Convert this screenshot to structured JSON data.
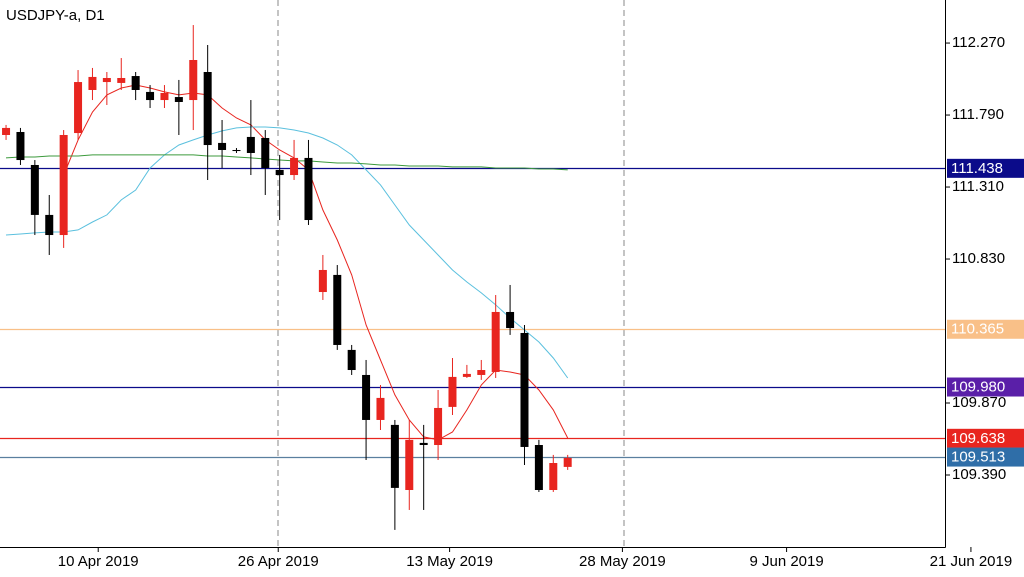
{
  "chart_data": {
    "type": "candlestick",
    "title": "USDJPY-a, D1",
    "up_color": "#e8251f",
    "down_color": "#000000",
    "open": [
      111.657,
      111.677,
      111.457,
      111.124,
      110.99,
      111.67,
      111.957,
      112.01,
      112.004,
      112.05,
      111.944,
      111.89,
      111.91,
      111.89,
      112.077,
      111.604,
      111.557,
      111.644,
      111.637,
      111.424,
      111.39,
      111.504,
      110.61,
      110.724,
      110.224,
      110.057,
      109.757,
      109.724,
      109.29,
      109.604,
      109.59,
      109.844,
      110.044,
      110.057,
      110.077,
      110.477,
      110.337,
      109.59,
      109.29,
      109.444
    ],
    "high": [
      111.724,
      111.704,
      111.49,
      111.257,
      111.69,
      112.09,
      112.104,
      112.077,
      112.17,
      112.077,
      111.99,
      111.99,
      112.024,
      112.39,
      112.257,
      111.757,
      111.57,
      111.89,
      111.69,
      111.524,
      111.624,
      111.624,
      110.857,
      110.79,
      110.257,
      110.157,
      109.99,
      109.757,
      109.757,
      109.724,
      109.957,
      110.17,
      110.124,
      110.157,
      110.59,
      110.657,
      110.39,
      109.624,
      109.524,
      109.524
    ],
    "low": [
      111.624,
      111.457,
      110.99,
      110.857,
      110.904,
      111.624,
      111.89,
      111.857,
      111.957,
      111.89,
      111.837,
      111.837,
      111.657,
      111.69,
      111.357,
      111.437,
      111.537,
      111.39,
      111.257,
      111.09,
      111.357,
      111.057,
      110.557,
      110.224,
      110.057,
      109.49,
      109.69,
      109.024,
      109.157,
      109.157,
      109.49,
      109.79,
      110.037,
      110.024,
      110.037,
      110.324,
      109.457,
      109.277,
      109.277,
      109.424
    ],
    "close": [
      111.704,
      111.49,
      111.124,
      110.99,
      111.657,
      112.01,
      112.044,
      112.037,
      112.037,
      111.957,
      111.89,
      111.937,
      111.877,
      112.157,
      111.59,
      111.557,
      111.55,
      111.537,
      111.437,
      111.39,
      111.504,
      111.09,
      110.757,
      110.257,
      110.09,
      109.757,
      109.904,
      109.304,
      109.624,
      109.59,
      109.837,
      110.044,
      110.064,
      110.09,
      110.477,
      110.37,
      109.577,
      109.29,
      109.47,
      109.504
    ],
    "series": [
      {
        "color": "#e8251f",
        "values": [
          null,
          null,
          null,
          null,
          111.39,
          111.624,
          111.81,
          111.924,
          111.97,
          111.99,
          111.97,
          111.944,
          111.924,
          111.937,
          111.924,
          111.837,
          111.77,
          111.724,
          111.624,
          111.557,
          111.504,
          111.424,
          111.157,
          110.957,
          110.724,
          110.39,
          110.157,
          109.924,
          109.757,
          109.644,
          109.624,
          109.677,
          109.824,
          109.99,
          110.09,
          110.077,
          110.057,
          109.957,
          109.824,
          109.637
        ]
      },
      {
        "color": "#5bc0de",
        "values": [
          110.99,
          110.997,
          111.004,
          111.01,
          111.01,
          111.024,
          111.077,
          111.124,
          111.224,
          111.29,
          111.437,
          111.524,
          111.59,
          111.624,
          111.657,
          111.684,
          111.704,
          111.71,
          111.71,
          111.704,
          111.69,
          111.67,
          111.637,
          111.59,
          111.524,
          111.424,
          111.324,
          111.19,
          111.057,
          110.957,
          110.857,
          110.757,
          110.677,
          110.604,
          110.524,
          110.437,
          110.357,
          110.277,
          110.17,
          110.037
        ]
      },
      {
        "color": "#3c9a3c",
        "values": [
          111.504,
          111.51,
          111.51,
          111.517,
          111.517,
          111.517,
          111.524,
          111.524,
          111.524,
          111.524,
          111.524,
          111.524,
          111.524,
          111.524,
          111.517,
          111.517,
          111.51,
          111.504,
          111.497,
          111.49,
          111.484,
          111.484,
          111.477,
          111.47,
          111.47,
          111.464,
          111.457,
          111.457,
          111.45,
          111.45,
          111.45,
          111.444,
          111.444,
          111.444,
          111.437,
          111.437,
          111.437,
          111.43,
          111.43,
          111.424
        ]
      }
    ],
    "levels": [
      {
        "value": 111.438,
        "label": "111.438",
        "color": "#0b0b8a",
        "label_color": "#0b0b8a"
      },
      {
        "value": 110.365,
        "label": "110.365",
        "color": "#f9c088",
        "label_color": "#f9c088"
      },
      {
        "value": 109.98,
        "label": "109.980",
        "color": "#0b0b8a",
        "label_color": "#5a1fa8"
      },
      {
        "value": 109.638,
        "label": "109.638",
        "color": "#e8251f",
        "label_color": "#e8251f"
      },
      {
        "value": 109.513,
        "label": "109.513",
        "color": "#5a7f9f",
        "label_color": "#2f6ea8"
      }
    ],
    "ylim": [
      108.91,
      112.557
    ],
    "yticks": [
      {
        "value": 112.27,
        "label": "112.270"
      },
      {
        "value": 111.79,
        "label": "111.790"
      },
      {
        "value": 111.31,
        "label": "111.310"
      },
      {
        "value": 110.83,
        "label": "110.830"
      },
      {
        "value": 109.87,
        "label": "109.870"
      },
      {
        "value": 109.39,
        "label": "109.390"
      }
    ],
    "xlim": [
      -0.42,
      65.2
    ],
    "xticks": [
      {
        "value": 6.4,
        "label": "10 Apr 2019"
      },
      {
        "value": 18.9,
        "label": "26 Apr 2019"
      },
      {
        "value": 30.8,
        "label": "13 May 2019"
      },
      {
        "value": 42.8,
        "label": "28 May 2019"
      },
      {
        "value": 54.2,
        "label": "9 Jun 2019"
      },
      {
        "value": 67,
        "label": "21 Jun 2019"
      }
    ]
  }
}
